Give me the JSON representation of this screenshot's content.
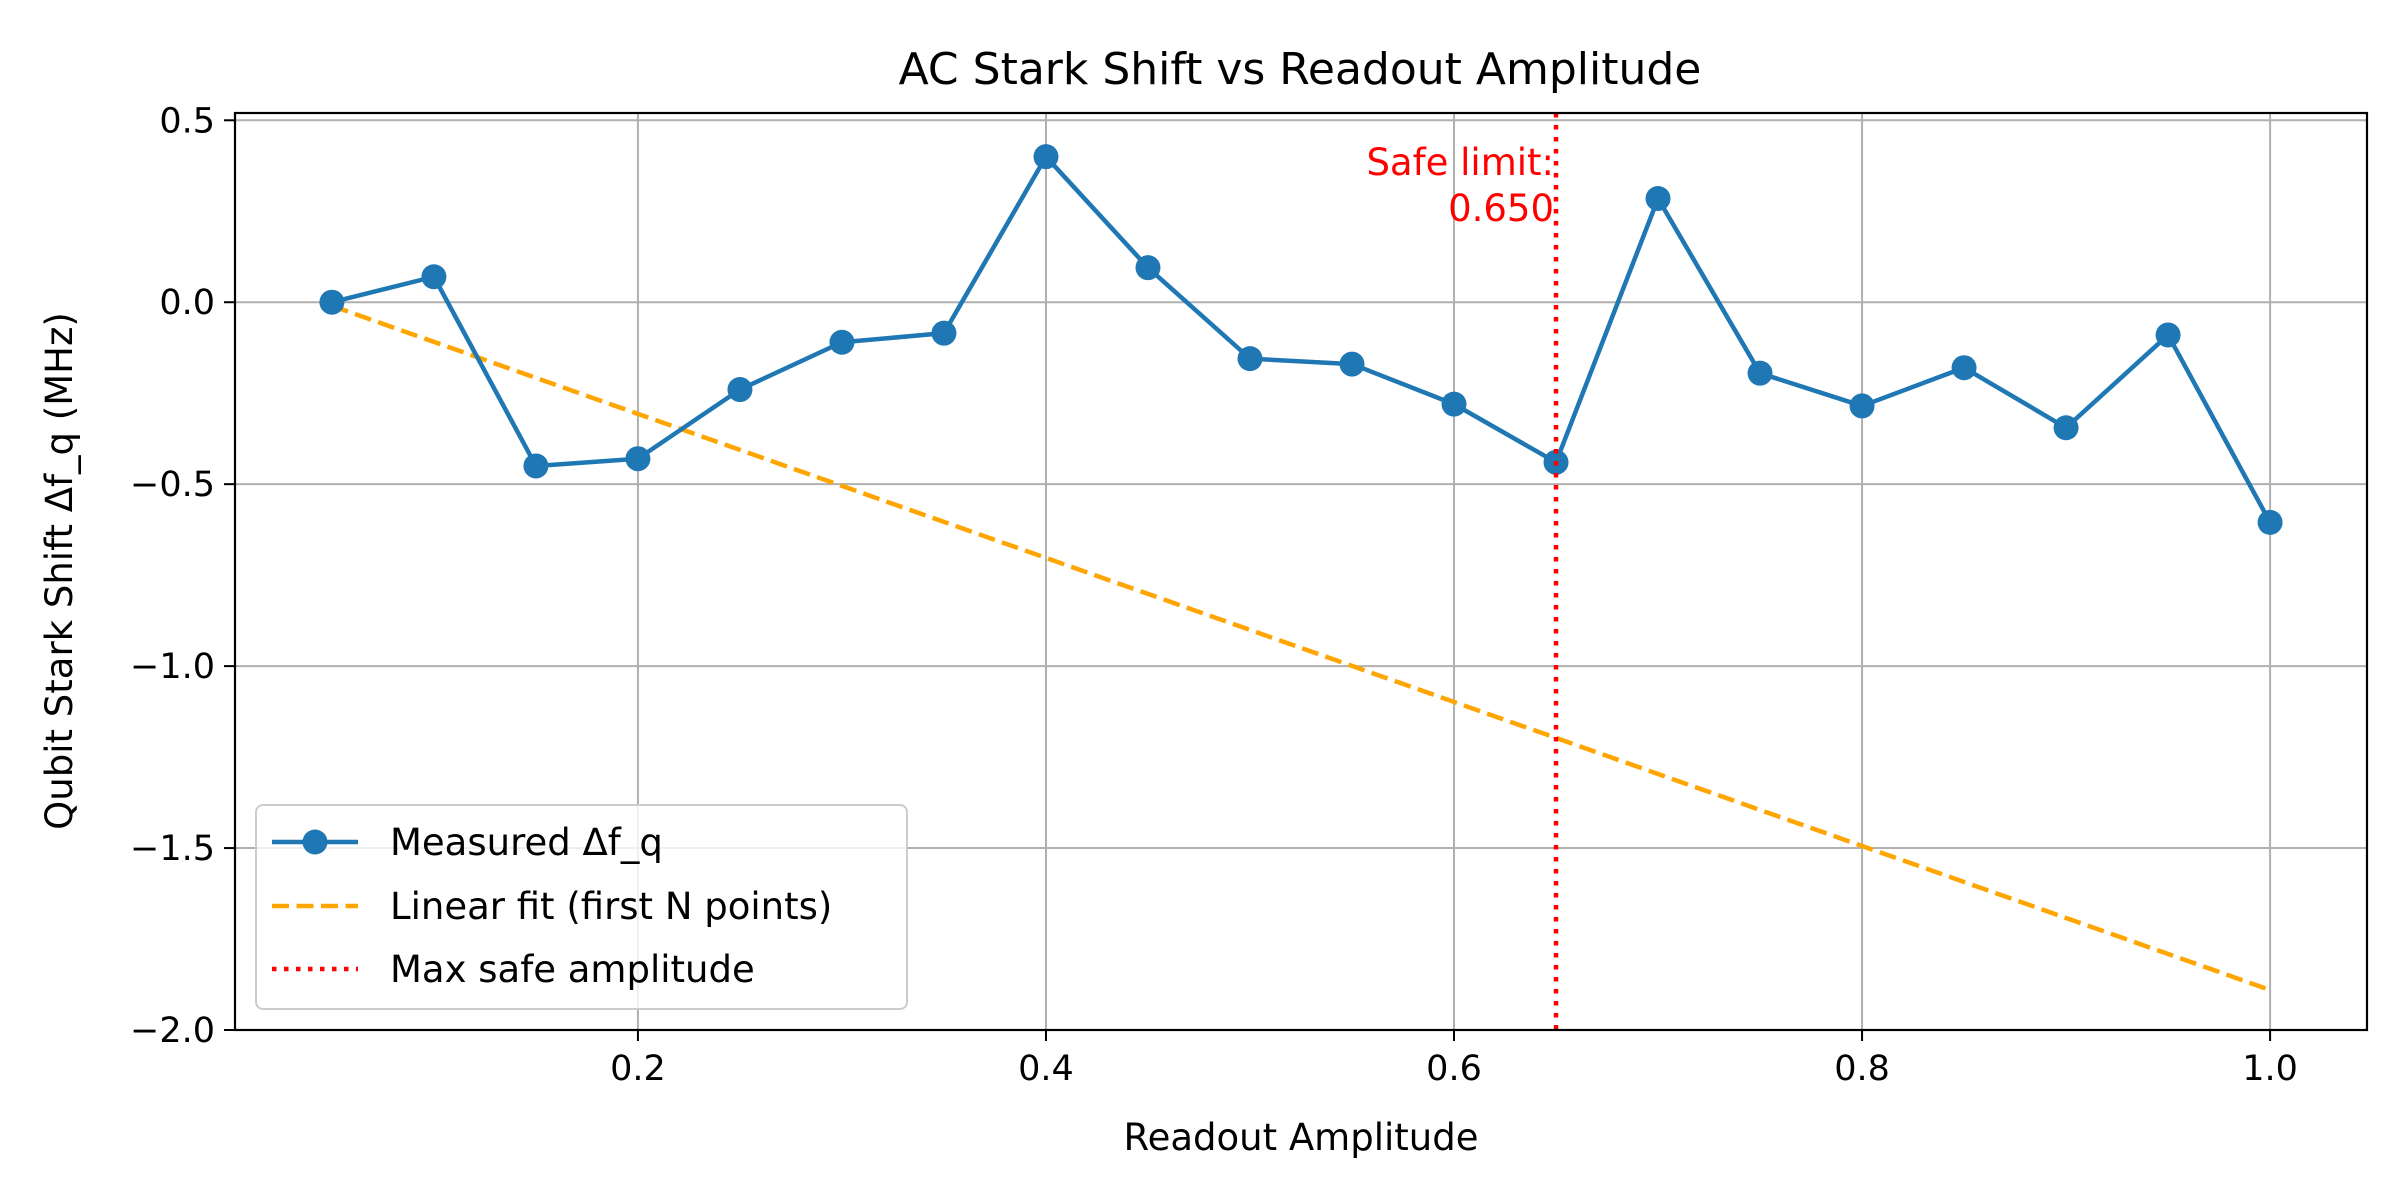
{
  "chart_data": {
    "type": "line",
    "title": "AC Stark Shift vs Readout Amplitude",
    "xlabel": "Readout Amplitude",
    "ylabel": "Qubit Stark Shift Δf_q (MHz)",
    "xlim": [
      0.0025,
      1.0475
    ],
    "ylim": [
      -2.0,
      0.52
    ],
    "xticks": [
      0.2,
      0.4,
      0.6,
      0.8,
      1.0
    ],
    "xtick_labels": [
      "0.2",
      "0.4",
      "0.6",
      "0.8",
      "1.0"
    ],
    "yticks": [
      0.5,
      0.0,
      -0.5,
      -1.0,
      -1.5,
      -2.0
    ],
    "ytick_labels": [
      "0.5",
      "0.0",
      "−0.5",
      "−1.0",
      "−1.5",
      "−2.0"
    ],
    "grid": true,
    "legend_position": "lower-left",
    "series": [
      {
        "name": "Measured Δf_q",
        "style": "solid-marker",
        "color": "#1f77b4",
        "x": [
          0.05,
          0.1,
          0.15,
          0.2,
          0.25,
          0.3,
          0.35,
          0.4,
          0.45,
          0.5,
          0.55,
          0.6,
          0.65,
          0.7,
          0.75,
          0.8,
          0.85,
          0.9,
          0.95,
          1.0
        ],
        "y": [
          0.0,
          0.07,
          -0.45,
          -0.43,
          -0.24,
          -0.11,
          -0.085,
          0.4,
          0.095,
          -0.155,
          -0.17,
          -0.28,
          -0.44,
          0.285,
          -0.195,
          -0.285,
          -0.18,
          -0.345,
          -0.09,
          -0.605
        ]
      },
      {
        "name": "Linear fit (first N points)",
        "style": "dashed",
        "color": "#ffa500",
        "x": [
          0.05,
          1.0
        ],
        "y": [
          -0.01,
          -1.89
        ]
      }
    ],
    "vline": {
      "name": "Max safe amplitude",
      "style": "dotted",
      "color": "#ff0000",
      "x": 0.65
    },
    "annotation": {
      "lines": [
        "Safe limit:",
        "0.650"
      ],
      "color": "#ff0000"
    }
  }
}
